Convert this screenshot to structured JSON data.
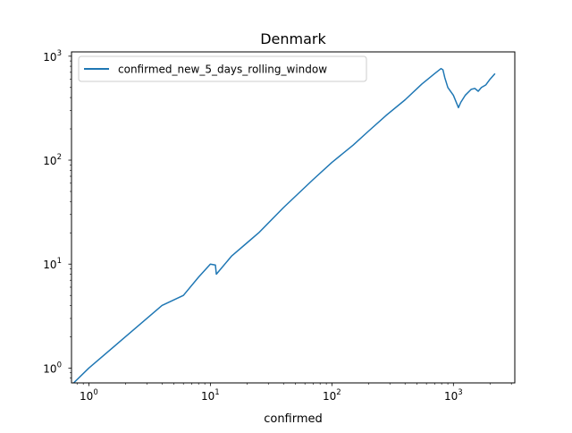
{
  "chart_data": {
    "type": "line",
    "title": "Denmark",
    "xlabel": "confirmed",
    "ylabel": "",
    "xscale": "log",
    "yscale": "log",
    "xlim": [
      0.72,
      3200
    ],
    "ylim": [
      0.72,
      1100
    ],
    "grid": false,
    "legend": "top-left",
    "x_ticks": [
      {
        "value": 1,
        "base": "10",
        "exp": "0"
      },
      {
        "value": 10,
        "base": "10",
        "exp": "1"
      },
      {
        "value": 100,
        "base": "10",
        "exp": "2"
      },
      {
        "value": 1000,
        "base": "10",
        "exp": "3"
      }
    ],
    "y_ticks": [
      {
        "value": 1,
        "base": "10",
        "exp": "0"
      },
      {
        "value": 10,
        "base": "10",
        "exp": "1"
      },
      {
        "value": 100,
        "base": "10",
        "exp": "2"
      },
      {
        "value": 1000,
        "base": "10",
        "exp": "3"
      }
    ],
    "series": [
      {
        "name": "confirmed_new_5_days_rolling_window",
        "color": "#1f77b4",
        "x": [
          0.75,
          1,
          2,
          4,
          6,
          8,
          10,
          11,
          11.2,
          15,
          20,
          25,
          40,
          70,
          100,
          150,
          200,
          280,
          400,
          550,
          700,
          790,
          820,
          850,
          900,
          1000,
          1100,
          1150,
          1250,
          1400,
          1500,
          1600,
          1700,
          1850,
          2000,
          2200
        ],
        "y": [
          0.72,
          1,
          2,
          4,
          5,
          7.5,
          10,
          9.8,
          8,
          12,
          16,
          20,
          35,
          65,
          95,
          140,
          190,
          270,
          380,
          540,
          680,
          760,
          740,
          620,
          500,
          420,
          320,
          360,
          420,
          480,
          490,
          460,
          500,
          530,
          600,
          680
        ]
      }
    ]
  }
}
